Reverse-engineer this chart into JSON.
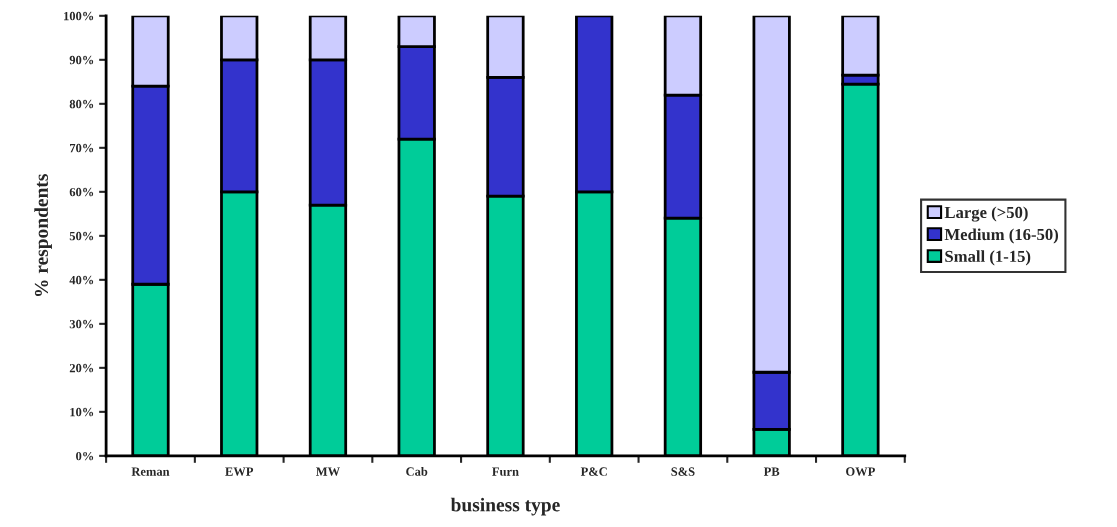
{
  "chart_data": {
    "type": "bar",
    "stacked": true,
    "xlabel": "business type",
    "ylabel": "% respondents",
    "categories": [
      "Reman",
      "EWP",
      "MW",
      "Cab",
      "Furn",
      "P&C",
      "S&S",
      "PB",
      "OWP"
    ],
    "series": [
      {
        "name": "Small (1-15)",
        "color": "#00cc99",
        "values": [
          39,
          60,
          57,
          72,
          59,
          60,
          54,
          6,
          84.5
        ]
      },
      {
        "name": "Medium (16-50)",
        "color": "#3333cc",
        "values": [
          45,
          30,
          33,
          21,
          27,
          40,
          28,
          13,
          2
        ]
      },
      {
        "name": "Large (>50)",
        "color": "#ccccff",
        "values": [
          16,
          10,
          10,
          7,
          14,
          null,
          18,
          81,
          13.5
        ]
      }
    ],
    "ylim": [
      0,
      100
    ],
    "yticks": [
      {
        "value": 0,
        "label": "0%"
      },
      {
        "value": 10,
        "label": "10%"
      },
      {
        "value": 20,
        "label": "20%"
      },
      {
        "value": 30,
        "label": "30%"
      },
      {
        "value": 40,
        "label": "40%"
      },
      {
        "value": 50,
        "label": "50%"
      },
      {
        "value": 60,
        "label": "60%"
      },
      {
        "value": 70,
        "label": "70%"
      },
      {
        "value": 80,
        "label": "80%"
      },
      {
        "value": 90,
        "label": "90%"
      },
      {
        "value": 100,
        "label": "100%"
      }
    ],
    "grid": false,
    "legend": "right"
  }
}
